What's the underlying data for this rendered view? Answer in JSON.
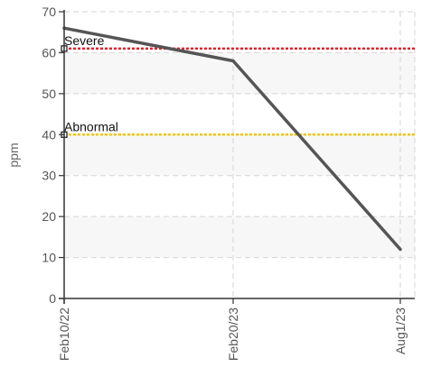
{
  "chart_data": {
    "type": "line",
    "title": "",
    "xlabel": "",
    "ylabel": "ppm",
    "ylim": [
      0,
      70
    ],
    "yticks": [
      0,
      10,
      20,
      30,
      40,
      50,
      60,
      70
    ],
    "x": [
      "Feb10/22",
      "Feb20/23",
      "Aug1/23"
    ],
    "series": [
      {
        "values": [
          66,
          58,
          12
        ],
        "color": "#555555"
      }
    ],
    "thresholds": [
      {
        "label": "Severe",
        "value": 61,
        "color": "#e8202a"
      },
      {
        "label": "Abnormal",
        "value": 40,
        "color": "#f2c700"
      }
    ],
    "grid": true,
    "legend": "none"
  }
}
